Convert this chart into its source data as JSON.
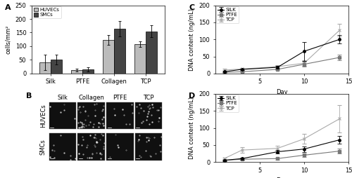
{
  "A": {
    "categories": [
      "Silk",
      "PTFE",
      "Collagen",
      "TCP"
    ],
    "huvec_values": [
      40,
      12,
      122,
      107
    ],
    "smc_values": [
      50,
      15,
      165,
      155
    ],
    "huvec_errors": [
      28,
      5,
      18,
      10
    ],
    "smc_errors": [
      18,
      8,
      28,
      22
    ],
    "ylabel": "cells/mm²",
    "ylim": [
      0,
      250
    ],
    "yticks": [
      0,
      50,
      100,
      150,
      200,
      250
    ],
    "huvec_color": "#bbbbbb",
    "smc_color": "#444444",
    "label_A": "A"
  },
  "B": {
    "col_labels": [
      "Silk",
      "Collagen",
      "PTFE",
      "TCP"
    ],
    "row_labels": [
      "HUVECs",
      "SMCs"
    ],
    "label_B": "B"
  },
  "C": {
    "days": [
      1,
      3,
      7,
      10,
      14
    ],
    "silk_values": [
      5,
      12,
      18,
      65,
      100
    ],
    "ptfe_values": [
      3,
      5,
      12,
      27,
      47
    ],
    "tcp_values": [
      10,
      13,
      20,
      30,
      127
    ],
    "silk_errors": [
      2,
      3,
      4,
      28,
      12
    ],
    "ptfe_errors": [
      1,
      2,
      3,
      7,
      8
    ],
    "tcp_errors": [
      3,
      3,
      4,
      8,
      18
    ],
    "ylabel": "DNA content (ng/mL)",
    "xlabel": "Day",
    "ylim": [
      0,
      200
    ],
    "yticks": [
      0,
      50,
      100,
      150,
      200
    ],
    "xticks": [
      5,
      10,
      15
    ],
    "xlim": [
      0,
      15
    ],
    "label_C": "C"
  },
  "D": {
    "days": [
      1,
      3,
      7,
      10,
      14
    ],
    "silk_values": [
      5,
      10,
      30,
      38,
      65
    ],
    "ptfe_values": [
      5,
      8,
      10,
      20,
      32
    ],
    "tcp_values": [
      10,
      35,
      40,
      68,
      127
    ],
    "silk_errors": [
      2,
      3,
      5,
      8,
      12
    ],
    "ptfe_errors": [
      1,
      2,
      3,
      5,
      8
    ],
    "tcp_errors": [
      3,
      8,
      8,
      15,
      40
    ],
    "ylabel": "DNA content (ng/mL)",
    "xlabel": "Day",
    "ylim": [
      0,
      200
    ],
    "yticks": [
      0,
      50,
      100,
      150,
      200
    ],
    "xticks": [
      5,
      10,
      15
    ],
    "xlim": [
      0,
      15
    ],
    "label_D": "D"
  },
  "background_color": "#ffffff",
  "font_size": 6,
  "line_color": "#000000"
}
